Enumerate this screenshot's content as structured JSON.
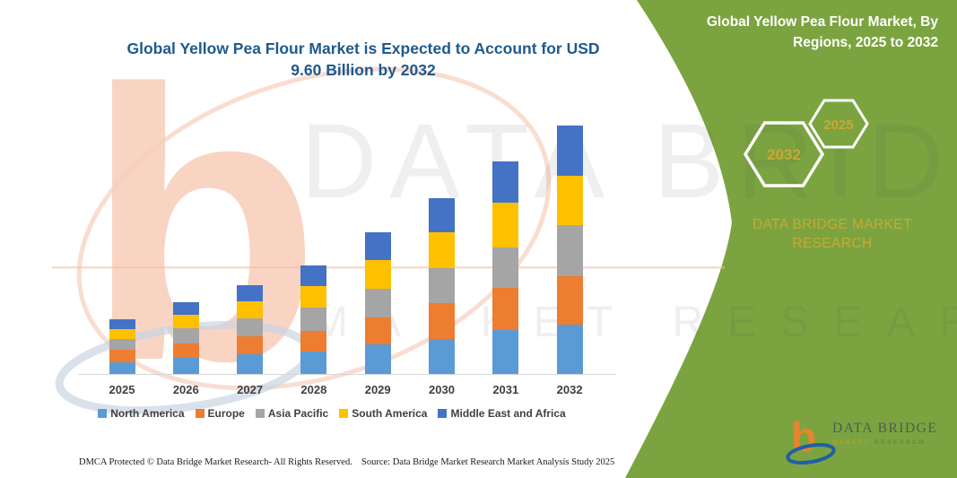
{
  "header": {
    "chart_title_line1": "Global Yellow Pea Flour Market is Expected to Account for USD",
    "chart_title_line2": "9.60 Billion by 2032"
  },
  "right_panel": {
    "title_line1": "Global Yellow Pea Flour Market, By",
    "title_line2": "Regions, 2025 to 2032",
    "hexagon_back_label": "2032",
    "hexagon_front_label": "2025",
    "brand_line1": "DATA BRIDGE MARKET",
    "brand_line2": "RESEARCH",
    "colors": {
      "panel_green": "#7BA440",
      "gold_text": "#C9A832"
    }
  },
  "logo": {
    "glyph": "b",
    "name": "DATA BRIDGE",
    "tagline_word1": "MARKET",
    "tagline_word2": "RESEARCH"
  },
  "watermark": {
    "glyph": "b",
    "line1": "DATA BRIDGE",
    "line2": "MARKET RESEARCH"
  },
  "footer": {
    "left": "DMCA Protected © Data Bridge Market Research-  All Rights Reserved.",
    "right": "Source: Data Bridge Market Research  Market Analysis Study 2025"
  },
  "chart_data": {
    "type": "bar",
    "stacked": true,
    "title": "Global Yellow Pea Flour Market is Expected to Account for USD 9.60 Billion by 2032",
    "unit": "USD Billion",
    "categories": [
      "2025",
      "2026",
      "2027",
      "2028",
      "2029",
      "2030",
      "2031",
      "2032"
    ],
    "series": [
      {
        "name": "North America",
        "color": "#5B9BD5",
        "values": [
          0.44,
          0.63,
          0.75,
          0.85,
          1.13,
          1.34,
          1.71,
          1.92
        ]
      },
      {
        "name": "Europe",
        "color": "#ED7D31",
        "values": [
          0.48,
          0.54,
          0.72,
          0.82,
          1.04,
          1.39,
          1.62,
          1.87
        ]
      },
      {
        "name": "Asia Pacific",
        "color": "#A5A5A5",
        "values": [
          0.43,
          0.6,
          0.67,
          0.88,
          1.13,
          1.35,
          1.56,
          1.96
        ]
      },
      {
        "name": "South America",
        "color": "#FFC000",
        "values": [
          0.38,
          0.52,
          0.66,
          0.83,
          1.09,
          1.39,
          1.73,
          1.91
        ]
      },
      {
        "name": "Middle East and Africa",
        "color": "#4472C4",
        "values": [
          0.37,
          0.48,
          0.64,
          0.81,
          1.07,
          1.33,
          1.6,
          1.94
        ]
      }
    ],
    "totals_by_year": [
      2.1,
      2.77,
      3.44,
      4.19,
      5.46,
      6.8,
      8.22,
      9.6
    ],
    "legend_position": "bottom",
    "y_axis": {
      "visible": false
    }
  }
}
